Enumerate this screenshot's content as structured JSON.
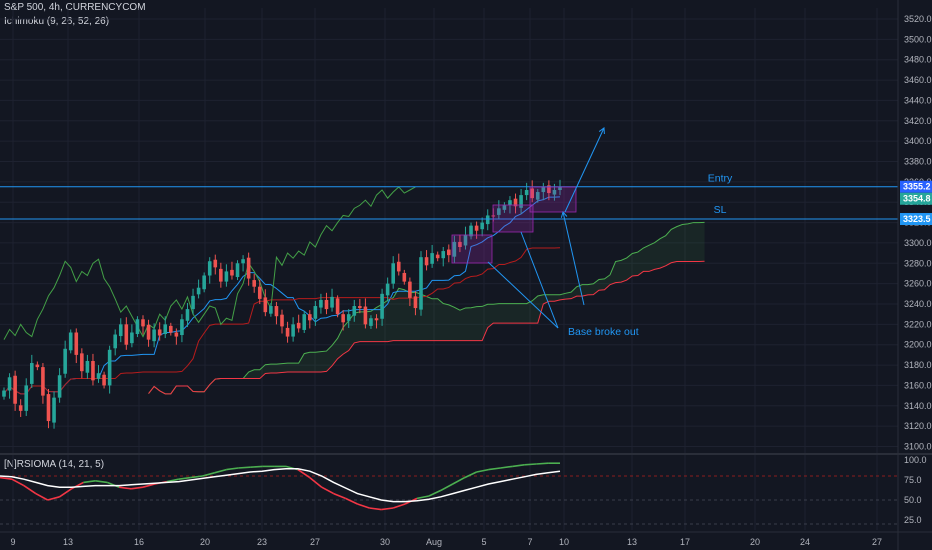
{
  "header": {
    "symbol_line": "S&P 500, 4h, CURRENCYCOM",
    "indicator_line": "Ichimoku (9, 26, 52, 26)"
  },
  "sub_pane": {
    "label": "[N]RSIOMA (14, 21, 5)"
  },
  "annotations": {
    "entry": "Entry",
    "sl": "SL",
    "breakout": "Base broke out"
  },
  "price_badges": [
    "3355.2",
    "3354.8",
    "3323.5"
  ],
  "colors": {
    "background": "#131722",
    "up_candle": "#26a69a",
    "down_candle": "#ef5350",
    "tenkan": "#2196f3",
    "kijun": "#b71c1c",
    "chikou": "#43a047",
    "span_a": "#4caf50",
    "span_b": "#f23645",
    "drawing": "#2196f3",
    "rsi": "#ffffff",
    "rsi_ma": "#4caf50",
    "rsi_ma2": "#f23645"
  },
  "chart_data": [
    {
      "type": "candlestick",
      "title": "S&P 500, 4h, CURRENCYCOM",
      "ylim": [
        3090,
        3530
      ],
      "y_ticks": [
        3100,
        3120,
        3140,
        3160,
        3180,
        3200,
        3220,
        3240,
        3260,
        3280,
        3300,
        3320,
        3340,
        3360,
        3380,
        3400,
        3420,
        3440,
        3460,
        3480,
        3500,
        3520
      ],
      "x_ticks": [
        "9",
        "13",
        "16",
        "20",
        "23",
        "27",
        "30",
        "Aug",
        "5",
        "7",
        "10",
        "13",
        "17",
        "20",
        "24",
        "27"
      ],
      "closes": [
        3155,
        3168,
        3142,
        3135,
        3160,
        3182,
        3178,
        3150,
        3125,
        3148,
        3170,
        3196,
        3212,
        3190,
        3174,
        3184,
        3165,
        3172,
        3160,
        3195,
        3210,
        3220,
        3200,
        3212,
        3225,
        3218,
        3205,
        3215,
        3209,
        3220,
        3212,
        3208,
        3225,
        3235,
        3248,
        3256,
        3268,
        3282,
        3276,
        3262,
        3272,
        3268,
        3280,
        3284,
        3265,
        3257,
        3245,
        3232,
        3238,
        3228,
        3218,
        3208,
        3220,
        3216,
        3230,
        3224,
        3238,
        3244,
        3235,
        3247,
        3230,
        3222,
        3230,
        3238,
        3236,
        3220,
        3226,
        3224,
        3250,
        3260,
        3280,
        3272,
        3262,
        3246,
        3236,
        3286,
        3278,
        3290,
        3285,
        3292,
        3288,
        3301,
        3296,
        3308,
        3317,
        3312,
        3320,
        3327,
        3326,
        3334,
        3337,
        3342,
        3336,
        3347,
        3352,
        3344,
        3350,
        3355,
        3349,
        3352,
        3355
      ],
      "ichimoku": {
        "tenkan": [
          9
        ],
        "kijun": [
          26
        ],
        "senkou_b": [
          52
        ],
        "displacement": [
          26
        ]
      },
      "annotations": [
        "Entry",
        "SL",
        "Base broke out"
      ],
      "levels": {
        "entry": 3355.2,
        "sl": 3323.5
      }
    },
    {
      "type": "line",
      "title": "[N]RSIOMA (14, 21, 5)",
      "ylim": [
        15,
        102
      ],
      "y_ticks": [
        "100.0",
        "75.0",
        "50.0",
        "25.0"
      ],
      "series": [
        {
          "values": [
            78,
            76,
            68,
            58,
            50,
            54,
            64,
            72,
            74,
            72,
            66,
            64,
            66,
            70,
            73,
            76,
            78,
            80,
            84,
            88,
            90,
            91,
            92,
            92,
            92,
            88,
            78,
            66,
            58,
            52,
            45,
            40,
            38,
            40,
            45,
            52,
            55,
            62,
            70,
            78,
            85,
            88,
            90,
            92,
            94,
            95,
            96,
            96
          ]
        },
        {
          "values": [
            80,
            79,
            76,
            72,
            68,
            66,
            66,
            67,
            68,
            68,
            68,
            69,
            70,
            71,
            72,
            73,
            75,
            77,
            79,
            81,
            83,
            85,
            86,
            88,
            89,
            89,
            86,
            80,
            72,
            65,
            58,
            54,
            50,
            48,
            48,
            49,
            51,
            54,
            58,
            62,
            66,
            70,
            73,
            76,
            79,
            82,
            84,
            86
          ]
        }
      ]
    }
  ]
}
